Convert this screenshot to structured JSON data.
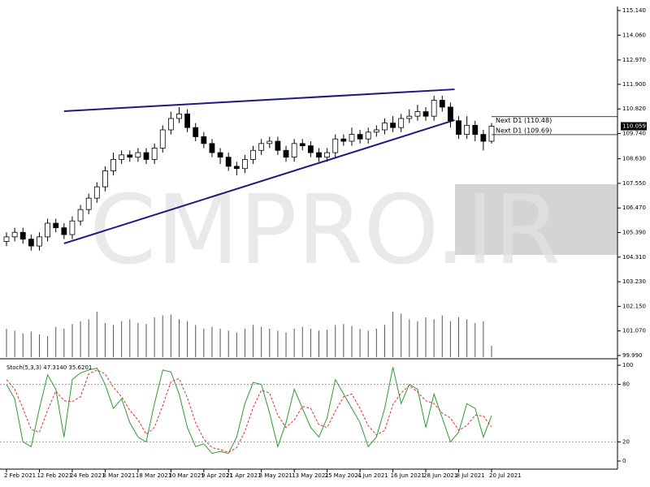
{
  "chart_data": [
    {
      "type": "candlestick",
      "open": [
        105.0,
        105.2,
        105.4,
        105.1,
        104.8,
        105.2,
        105.8,
        105.6,
        105.3,
        105.9,
        106.4,
        106.9,
        107.4,
        108.1,
        108.6,
        108.8,
        108.7,
        108.9,
        108.6,
        109.1,
        109.9,
        110.4,
        110.6,
        110.0,
        109.6,
        109.3,
        108.9,
        108.7,
        108.3,
        108.2,
        108.6,
        109.0,
        109.3,
        109.4,
        109.0,
        108.7,
        109.3,
        109.2,
        108.9,
        108.7,
        108.9,
        109.5,
        109.4,
        109.7,
        109.5,
        109.8,
        109.9,
        110.2,
        110.0,
        110.4,
        110.5,
        110.7,
        110.5,
        111.2,
        110.9,
        110.3,
        109.7,
        110.1,
        109.7,
        109.4
      ],
      "high": [
        105.4,
        105.6,
        105.6,
        105.3,
        105.4,
        106.0,
        106.0,
        105.8,
        106.1,
        106.6,
        107.1,
        107.6,
        108.3,
        108.9,
        109.0,
        109.0,
        109.1,
        109.1,
        109.3,
        110.1,
        110.7,
        110.9,
        110.8,
        110.2,
        109.8,
        109.5,
        109.1,
        108.9,
        108.5,
        108.8,
        109.2,
        109.5,
        109.6,
        109.6,
        109.2,
        109.5,
        109.5,
        109.4,
        109.1,
        109.1,
        109.7,
        109.7,
        110.0,
        109.9,
        110.0,
        110.1,
        110.4,
        110.5,
        110.6,
        110.8,
        111.0,
        110.9,
        111.4,
        111.4,
        111.1,
        110.5,
        110.5,
        110.3,
        109.9,
        110.2
      ],
      "low": [
        104.8,
        105.0,
        104.9,
        104.6,
        104.6,
        105.0,
        105.4,
        105.1,
        105.1,
        105.7,
        106.2,
        106.7,
        107.2,
        107.9,
        108.4,
        108.5,
        108.5,
        108.4,
        108.4,
        108.9,
        109.7,
        110.2,
        109.8,
        109.4,
        109.1,
        108.7,
        108.4,
        108.1,
        107.9,
        108.0,
        108.4,
        108.8,
        109.1,
        108.8,
        108.5,
        108.5,
        109.0,
        108.7,
        108.5,
        108.5,
        108.7,
        109.2,
        109.2,
        109.3,
        109.3,
        109.6,
        109.7,
        109.8,
        109.8,
        110.2,
        110.3,
        110.3,
        110.3,
        110.7,
        110.0,
        109.5,
        109.5,
        109.4,
        109.0,
        109.3
      ],
      "close": [
        105.2,
        105.4,
        105.1,
        104.8,
        105.2,
        105.8,
        105.6,
        105.3,
        105.9,
        106.4,
        106.9,
        107.4,
        108.1,
        108.6,
        108.8,
        108.7,
        108.9,
        108.6,
        109.1,
        109.9,
        110.4,
        110.6,
        110.0,
        109.6,
        109.3,
        108.9,
        108.7,
        108.3,
        108.2,
        108.6,
        109.0,
        109.3,
        109.4,
        109.0,
        108.7,
        109.3,
        109.2,
        108.9,
        108.7,
        108.9,
        109.5,
        109.4,
        109.7,
        109.5,
        109.8,
        109.9,
        110.2,
        110.0,
        110.4,
        110.5,
        110.7,
        110.5,
        111.2,
        110.9,
        110.3,
        109.7,
        110.1,
        109.7,
        109.4,
        110.059
      ],
      "volume": [
        30,
        28,
        25,
        27,
        24,
        22,
        32,
        30,
        35,
        38,
        40,
        48,
        36,
        34,
        38,
        40,
        36,
        35,
        42,
        44,
        45,
        40,
        38,
        34,
        30,
        32,
        30,
        28,
        26,
        30,
        34,
        32,
        30,
        28,
        26,
        30,
        32,
        30,
        28,
        29,
        34,
        35,
        33,
        30,
        28,
        30,
        34,
        48,
        46,
        40,
        38,
        42,
        40,
        44,
        38,
        42,
        40,
        36,
        38,
        12
      ],
      "ylim": [
        99.99,
        115.14
      ],
      "yticks": [
        {
          "value": 115.14,
          "label": "115.140"
        },
        {
          "value": 114.06,
          "label": "114.060"
        },
        {
          "value": 112.97,
          "label": "112.970"
        },
        {
          "value": 111.9,
          "label": "111.900"
        },
        {
          "value": 110.82,
          "label": "110.820"
        },
        {
          "value": 109.74,
          "label": "109.740"
        },
        {
          "value": 108.63,
          "label": "108.630"
        },
        {
          "value": 107.55,
          "label": "107.550"
        },
        {
          "value": 106.47,
          "label": "106.470"
        },
        {
          "value": 105.39,
          "label": "105.390"
        },
        {
          "value": 104.31,
          "label": "104.310"
        },
        {
          "value": 103.23,
          "label": "103.230"
        },
        {
          "value": 102.15,
          "label": "102.150"
        },
        {
          "value": 101.07,
          "label": "101.070"
        },
        {
          "value": 99.99,
          "label": "99.990"
        }
      ],
      "last_price": {
        "value": 110.059,
        "label": "110.059"
      },
      "annotations": [
        {
          "value": 110.48,
          "label": "Next D1 (110.48)"
        },
        {
          "value": 109.69,
          "label": "Next D1 (109.69)"
        }
      ],
      "trendlines": [
        {
          "x": [
            7,
            54.5
          ],
          "y": [
            110.72,
            111.68
          ]
        },
        {
          "x": [
            7,
            54.5
          ],
          "y": [
            104.91,
            110.33
          ]
        }
      ],
      "trendline_color": "#1c1c7c",
      "up_color": "#ffffff",
      "down_color": "#000000",
      "watermark": "CMPRO.IR"
    },
    {
      "type": "line",
      "title": "Stoch(5,3,3) 47.3140 35.6201",
      "x": [
        "2 Feb 2021",
        null,
        null,
        null,
        "12 Feb 2021",
        null,
        null,
        null,
        "24 Feb 2021",
        null,
        null,
        null,
        "8 Mar 2021",
        null,
        null,
        null,
        "18 Mar 2021",
        null,
        null,
        null,
        "30 Mar 2021",
        null,
        null,
        null,
        "9 Apr 2021",
        null,
        null,
        "21 Apr 2021",
        null,
        null,
        null,
        "3 May 2021",
        null,
        null,
        null,
        "13 May 2021",
        null,
        null,
        null,
        "25 May 2021",
        null,
        null,
        null,
        "4 Jun 2021",
        null,
        null,
        null,
        "16 Jun 2021",
        null,
        null,
        null,
        "28 Jun 2021",
        null,
        null,
        null,
        "8 Jul 2021",
        null,
        null,
        null,
        "20 Jul 2021"
      ],
      "series": [
        {
          "color": "#2e9b2e",
          "values": [
            80,
            65,
            20,
            15,
            55,
            90,
            75,
            25,
            85,
            92,
            95,
            97,
            80,
            55,
            65,
            40,
            25,
            20,
            60,
            95,
            93,
            70,
            35,
            15,
            18,
            8,
            10,
            8,
            25,
            60,
            82,
            80,
            50,
            15,
            40,
            75,
            55,
            35,
            25,
            45,
            85,
            70,
            55,
            40,
            15,
            25,
            55,
            98,
            60,
            80,
            75,
            35,
            70,
            45,
            20,
            30,
            60,
            55,
            25,
            47.314
          ]
        },
        {
          "color": "#e03030",
          "dashed": true,
          "values": [
            85,
            75,
            55,
            33,
            30,
            53,
            73,
            63,
            62,
            67,
            91,
            95,
            91,
            77,
            67,
            53,
            43,
            28,
            35,
            58,
            83,
            86,
            66,
            40,
            23,
            14,
            12,
            9,
            14,
            31,
            56,
            74,
            71,
            48,
            35,
            43,
            57,
            55,
            38,
            35,
            52,
            67,
            70,
            55,
            37,
            27,
            32,
            59,
            71,
            79,
            72,
            63,
            60,
            50,
            45,
            32,
            37,
            48,
            47,
            35.6201
          ]
        }
      ],
      "ylim": [
        0,
        100
      ],
      "yticks": [
        100,
        80,
        20,
        0
      ],
      "levels": [
        80,
        20
      ]
    }
  ]
}
